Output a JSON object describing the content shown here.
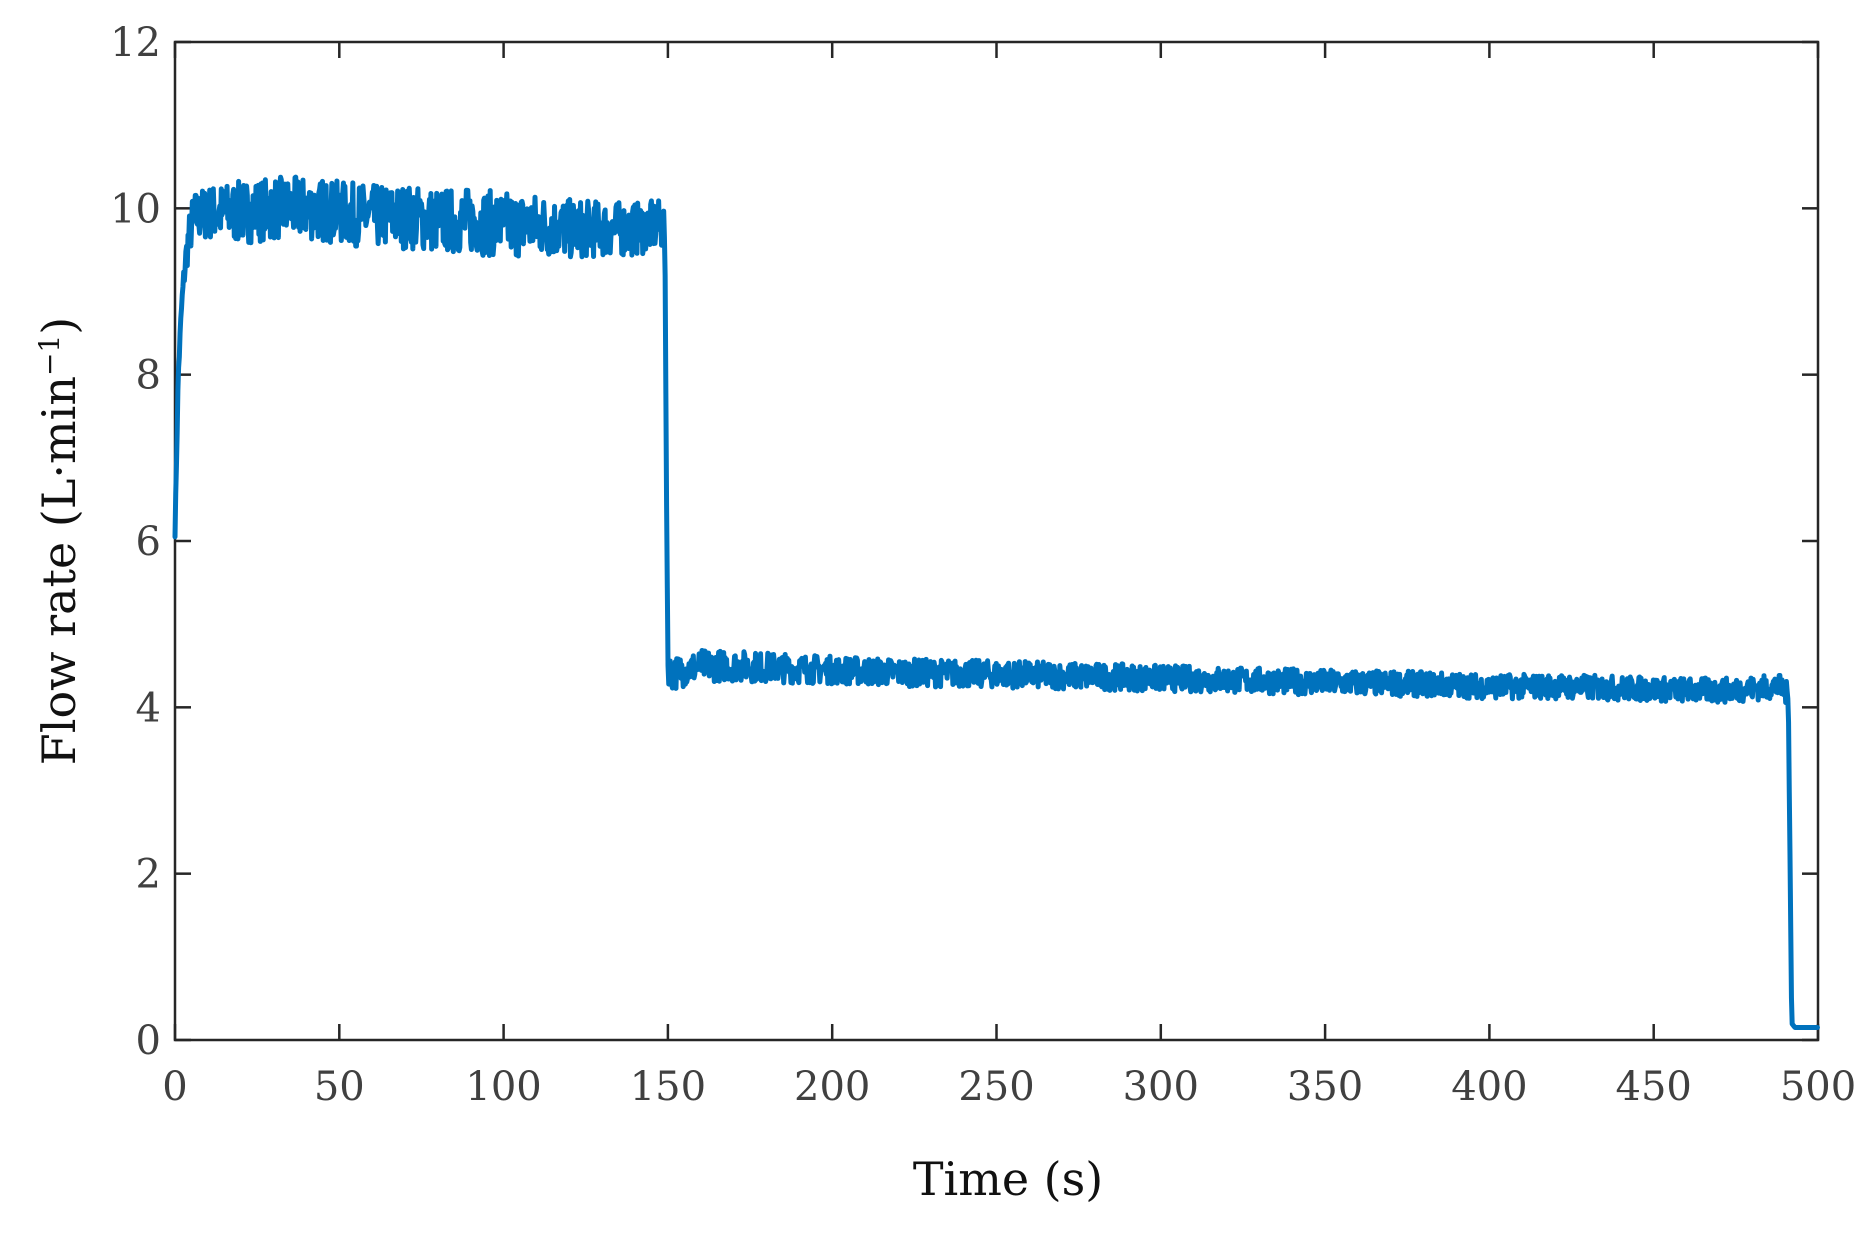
{
  "chart_data": {
    "type": "line",
    "title": "",
    "xlabel": "Time (s)",
    "ylabel": {
      "prefix": "Flow rate (L·min",
      "superscript": "−1",
      "suffix": ")"
    },
    "xlim": [
      0,
      500
    ],
    "ylim": [
      0,
      12
    ],
    "xticks": [
      "0",
      "50",
      "100",
      "150",
      "200",
      "250",
      "300",
      "350",
      "400",
      "450",
      "500"
    ],
    "yticks": [
      "0",
      "2",
      "4",
      "6",
      "8",
      "10",
      "12"
    ],
    "grid": false,
    "legend": "none",
    "series": [
      {
        "color": "#0072BD",
        "points": [
          [
            0,
            6.1
          ],
          [
            1,
            8.0
          ],
          [
            2,
            8.8
          ],
          [
            3,
            9.3
          ],
          [
            4,
            9.6
          ],
          [
            5,
            9.8
          ],
          [
            6,
            9.9
          ],
          [
            10,
            9.95
          ],
          [
            20,
            9.95
          ],
          [
            30,
            10.0
          ],
          [
            40,
            10.0
          ],
          [
            50,
            9.95
          ],
          [
            60,
            9.9
          ],
          [
            70,
            9.9
          ],
          [
            80,
            9.85
          ],
          [
            90,
            9.85
          ],
          [
            100,
            9.8
          ],
          [
            110,
            9.8
          ],
          [
            120,
            9.75
          ],
          [
            130,
            9.75
          ],
          [
            140,
            9.75
          ],
          [
            148,
            9.8
          ],
          [
            149,
            9.75
          ],
          [
            150,
            4.5
          ],
          [
            151,
            4.4
          ],
          [
            155,
            4.45
          ],
          [
            160,
            4.5
          ],
          [
            170,
            4.5
          ],
          [
            180,
            4.48
          ],
          [
            200,
            4.45
          ],
          [
            220,
            4.42
          ],
          [
            250,
            4.4
          ],
          [
            280,
            4.37
          ],
          [
            300,
            4.35
          ],
          [
            320,
            4.33
          ],
          [
            350,
            4.3
          ],
          [
            380,
            4.28
          ],
          [
            400,
            4.25
          ],
          [
            420,
            4.25
          ],
          [
            450,
            4.22
          ],
          [
            470,
            4.2
          ],
          [
            488,
            4.25
          ],
          [
            490,
            4.2
          ],
          [
            491,
            4.1
          ],
          [
            492,
            0.2
          ],
          [
            493,
            0.15
          ],
          [
            495,
            0.15
          ],
          [
            498,
            0.15
          ],
          [
            500,
            0.15
          ]
        ],
        "noise_amplitude": [
          [
            0,
            0.05
          ],
          [
            5,
            0.3
          ],
          [
            20,
            0.38
          ],
          [
            50,
            0.38
          ],
          [
            100,
            0.4
          ],
          [
            140,
            0.32
          ],
          [
            149,
            0.3
          ],
          [
            150,
            0.2
          ],
          [
            200,
            0.17
          ],
          [
            300,
            0.16
          ],
          [
            400,
            0.15
          ],
          [
            491,
            0.15
          ],
          [
            492,
            0.0
          ],
          [
            500,
            0.0
          ]
        ]
      }
    ]
  }
}
